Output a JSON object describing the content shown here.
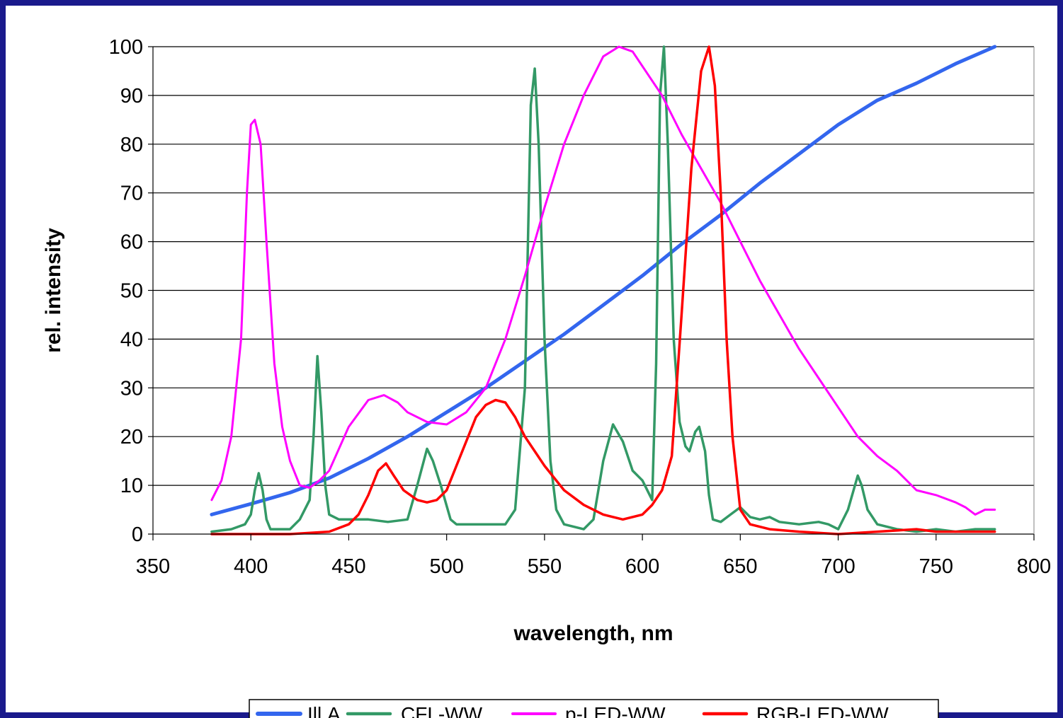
{
  "chart_data": {
    "type": "line",
    "xlabel": "wavelength, nm",
    "ylabel": "rel. intensity",
    "xlim": [
      350,
      800
    ],
    "ylim": [
      0,
      100
    ],
    "x_ticks": [
      "350",
      "400",
      "450",
      "500",
      "550",
      "600",
      "650",
      "700",
      "750",
      "800"
    ],
    "y_ticks": [
      "0",
      "10",
      "20",
      "30",
      "40",
      "50",
      "60",
      "70",
      "80",
      "90",
      "100"
    ],
    "grid": "horizontal",
    "legend_position": "bottom",
    "series": [
      {
        "name": "Ill.A",
        "color": "#3366ee",
        "width": 5,
        "points": [
          [
            380,
            4
          ],
          [
            400,
            6.2
          ],
          [
            420,
            8.5
          ],
          [
            440,
            11.5
          ],
          [
            460,
            15.5
          ],
          [
            480,
            20
          ],
          [
            500,
            25
          ],
          [
            520,
            30
          ],
          [
            540,
            35.5
          ],
          [
            560,
            41
          ],
          [
            580,
            47
          ],
          [
            600,
            53
          ],
          [
            620,
            59.5
          ],
          [
            640,
            65.5
          ],
          [
            660,
            72
          ],
          [
            680,
            78
          ],
          [
            700,
            84
          ],
          [
            720,
            89
          ],
          [
            740,
            92.5
          ],
          [
            760,
            96.5
          ],
          [
            780,
            100
          ]
        ]
      },
      {
        "name": "CFL-WW",
        "color": "#339966",
        "width": 3.5,
        "points": [
          [
            380,
            0.5
          ],
          [
            390,
            1
          ],
          [
            397,
            2
          ],
          [
            400,
            4
          ],
          [
            402,
            9
          ],
          [
            404,
            12.5
          ],
          [
            406,
            9
          ],
          [
            408,
            3
          ],
          [
            410,
            1
          ],
          [
            420,
            1
          ],
          [
            425,
            3
          ],
          [
            430,
            7
          ],
          [
            432,
            20
          ],
          [
            434,
            36.5
          ],
          [
            436,
            25
          ],
          [
            438,
            10
          ],
          [
            440,
            4
          ],
          [
            445,
            3
          ],
          [
            460,
            3
          ],
          [
            470,
            2.5
          ],
          [
            480,
            3
          ],
          [
            485,
            10
          ],
          [
            490,
            17.5
          ],
          [
            493,
            15
          ],
          [
            497,
            10
          ],
          [
            502,
            3
          ],
          [
            505,
            2
          ],
          [
            520,
            2
          ],
          [
            530,
            2
          ],
          [
            535,
            5
          ],
          [
            540,
            30
          ],
          [
            543,
            88
          ],
          [
            545,
            95.5
          ],
          [
            547,
            80
          ],
          [
            550,
            40
          ],
          [
            553,
            15
          ],
          [
            556,
            5
          ],
          [
            560,
            2
          ],
          [
            570,
            1
          ],
          [
            575,
            3
          ],
          [
            580,
            15
          ],
          [
            585,
            22.5
          ],
          [
            590,
            19
          ],
          [
            595,
            13
          ],
          [
            600,
            11
          ],
          [
            605,
            7
          ],
          [
            607,
            35
          ],
          [
            609,
            90
          ],
          [
            611,
            100
          ],
          [
            613,
            80
          ],
          [
            616,
            40
          ],
          [
            619,
            23
          ],
          [
            622,
            18
          ],
          [
            624,
            17
          ],
          [
            627,
            21
          ],
          [
            629,
            22
          ],
          [
            632,
            17
          ],
          [
            634,
            8
          ],
          [
            636,
            3
          ],
          [
            640,
            2.5
          ],
          [
            645,
            4
          ],
          [
            650,
            5.5
          ],
          [
            655,
            3.5
          ],
          [
            660,
            3
          ],
          [
            665,
            3.5
          ],
          [
            670,
            2.5
          ],
          [
            680,
            2
          ],
          [
            690,
            2.5
          ],
          [
            695,
            2
          ],
          [
            700,
            1
          ],
          [
            705,
            5
          ],
          [
            710,
            12
          ],
          [
            712,
            10
          ],
          [
            715,
            5
          ],
          [
            720,
            2
          ],
          [
            730,
            1
          ],
          [
            740,
            0.5
          ],
          [
            750,
            1
          ],
          [
            760,
            0.5
          ],
          [
            770,
            1
          ],
          [
            780,
            1
          ]
        ]
      },
      {
        "name": "p-LED-WW",
        "color": "#ff00ff",
        "width": 3,
        "points": [
          [
            380,
            7
          ],
          [
            385,
            11
          ],
          [
            390,
            20
          ],
          [
            395,
            40
          ],
          [
            398,
            70
          ],
          [
            400,
            84
          ],
          [
            402,
            85
          ],
          [
            405,
            80
          ],
          [
            408,
            60
          ],
          [
            412,
            35
          ],
          [
            416,
            22
          ],
          [
            420,
            15
          ],
          [
            425,
            10
          ],
          [
            430,
            9.5
          ],
          [
            435,
            11
          ],
          [
            440,
            13
          ],
          [
            450,
            22
          ],
          [
            460,
            27.5
          ],
          [
            468,
            28.5
          ],
          [
            475,
            27
          ],
          [
            480,
            25
          ],
          [
            490,
            23
          ],
          [
            500,
            22.5
          ],
          [
            510,
            25
          ],
          [
            520,
            30
          ],
          [
            530,
            40
          ],
          [
            540,
            53
          ],
          [
            550,
            67
          ],
          [
            560,
            80
          ],
          [
            570,
            90
          ],
          [
            580,
            98
          ],
          [
            588,
            100
          ],
          [
            595,
            99
          ],
          [
            600,
            96
          ],
          [
            610,
            90
          ],
          [
            620,
            82
          ],
          [
            630,
            75
          ],
          [
            640,
            68
          ],
          [
            650,
            60
          ],
          [
            660,
            52
          ],
          [
            670,
            45
          ],
          [
            680,
            38
          ],
          [
            690,
            32
          ],
          [
            700,
            26
          ],
          [
            710,
            20
          ],
          [
            720,
            16
          ],
          [
            730,
            13
          ],
          [
            740,
            9
          ],
          [
            750,
            8
          ],
          [
            760,
            6.5
          ],
          [
            765,
            5.5
          ],
          [
            770,
            4
          ],
          [
            775,
            5
          ],
          [
            780,
            5
          ]
        ]
      },
      {
        "name": "RGB-LED-WW",
        "color": "#ff0000",
        "width": 3.5,
        "points": [
          [
            380,
            0
          ],
          [
            420,
            0
          ],
          [
            440,
            0.5
          ],
          [
            450,
            2
          ],
          [
            455,
            4
          ],
          [
            460,
            8
          ],
          [
            465,
            13
          ],
          [
            469,
            14.5
          ],
          [
            473,
            12
          ],
          [
            478,
            9
          ],
          [
            485,
            7
          ],
          [
            490,
            6.5
          ],
          [
            495,
            7
          ],
          [
            500,
            9
          ],
          [
            505,
            14
          ],
          [
            510,
            19
          ],
          [
            515,
            24
          ],
          [
            520,
            26.5
          ],
          [
            525,
            27.5
          ],
          [
            530,
            27
          ],
          [
            535,
            24
          ],
          [
            540,
            20
          ],
          [
            550,
            14
          ],
          [
            560,
            9
          ],
          [
            570,
            6
          ],
          [
            580,
            4
          ],
          [
            590,
            3
          ],
          [
            600,
            4
          ],
          [
            605,
            6
          ],
          [
            610,
            9
          ],
          [
            615,
            16
          ],
          [
            620,
            45
          ],
          [
            625,
            75
          ],
          [
            630,
            95
          ],
          [
            634,
            100
          ],
          [
            637,
            92
          ],
          [
            640,
            70
          ],
          [
            643,
            40
          ],
          [
            646,
            20
          ],
          [
            650,
            5
          ],
          [
            655,
            2
          ],
          [
            665,
            1
          ],
          [
            680,
            0.5
          ],
          [
            700,
            0
          ],
          [
            720,
            0.5
          ],
          [
            740,
            1
          ],
          [
            750,
            0.5
          ],
          [
            780,
            0.5
          ]
        ]
      }
    ]
  }
}
